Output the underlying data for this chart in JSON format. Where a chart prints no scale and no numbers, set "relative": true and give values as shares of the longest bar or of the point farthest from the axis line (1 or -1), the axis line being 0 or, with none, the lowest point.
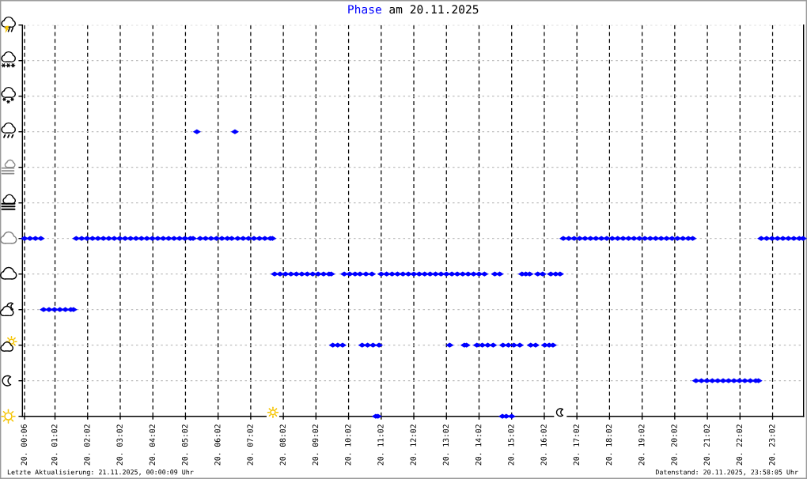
{
  "chart_data": {
    "type": "scatter",
    "title": "am 20.11.2025",
    "marker": "diamond",
    "grid": true,
    "tick_labels": "x",
    "relative": true,
    "xlim": [
      "2025-11-20T00:02",
      "2025-11-20T23:59"
    ],
    "xticks": [
      {
        "value": "2025-11-20T00:06",
        "label": "20. 00:06"
      },
      {
        "value": "2025-11-20T01:02",
        "label": "20. 01:02"
      },
      {
        "value": "2025-11-20T02:02",
        "label": "20. 02:02"
      },
      {
        "value": "2025-11-20T03:02",
        "label": "20. 03:02"
      },
      {
        "value": "2025-11-20T04:02",
        "label": "20. 04:02"
      },
      {
        "value": "2025-11-20T05:02",
        "label": "20. 05:02"
      },
      {
        "value": "2025-11-20T06:02",
        "label": "20. 06:02"
      },
      {
        "value": "2025-11-20T07:02",
        "label": "20. 07:02"
      },
      {
        "value": "2025-11-20T08:02",
        "label": "20. 08:02"
      },
      {
        "value": "2025-11-20T09:02",
        "label": "20. 09:02"
      },
      {
        "value": "2025-11-20T10:02",
        "label": "20. 10:02"
      },
      {
        "value": "2025-11-20T11:02",
        "label": "20. 11:02"
      },
      {
        "value": "2025-11-20T12:02",
        "label": "20. 12:02"
      },
      {
        "value": "2025-11-20T13:02",
        "label": "20. 13:02"
      },
      {
        "value": "2025-11-20T14:02",
        "label": "20. 14:02"
      },
      {
        "value": "2025-11-20T15:02",
        "label": "20. 15:02"
      },
      {
        "value": "2025-11-20T16:02",
        "label": "20. 16:02"
      },
      {
        "value": "2025-11-20T17:02",
        "label": "20. 17:02"
      },
      {
        "value": "2025-11-20T18:02",
        "label": "20. 18:02"
      },
      {
        "value": "2025-11-20T19:02",
        "label": "20. 19:02"
      },
      {
        "value": "2025-11-20T20:02",
        "label": "20. 20:02"
      },
      {
        "value": "2025-11-20T21:02",
        "label": "20. 21:02"
      },
      {
        "value": "2025-11-20T22:02",
        "label": "20. 22:02"
      },
      {
        "value": "2025-11-20T23:02",
        "label": "20. 23:02"
      }
    ],
    "annotations": [
      "Letzte Aktualisierung: 21.11.2025, 00:00:09 Uhr",
      "Datenstand: 20.11.2025, 23:58:05 Uhr"
    ],
    "series": [
      {
        "name": "Phase",
        "color": "#0000ff",
        "x": [
          "2025-11-20T00:06",
          "2025-11-20T00:16",
          "2025-11-20T00:26",
          "2025-11-20T00:36",
          "2025-11-20T00:41",
          "2025-11-20T00:51",
          "2025-11-20T01:01",
          "2025-11-20T01:11",
          "2025-11-20T01:21",
          "2025-11-20T01:31",
          "2025-11-20T01:36",
          "2025-11-20T01:41",
          "2025-11-20T01:51",
          "2025-11-20T02:01",
          "2025-11-20T02:11",
          "2025-11-20T02:21",
          "2025-11-20T02:31",
          "2025-11-20T02:41",
          "2025-11-20T02:51",
          "2025-11-20T03:01",
          "2025-11-20T03:11",
          "2025-11-20T03:21",
          "2025-11-20T03:31",
          "2025-11-20T03:41",
          "2025-11-20T03:51",
          "2025-11-20T04:01",
          "2025-11-20T04:11",
          "2025-11-20T04:21",
          "2025-11-20T04:31",
          "2025-11-20T04:41",
          "2025-11-20T04:51",
          "2025-11-20T05:01",
          "2025-11-20T05:11",
          "2025-11-20T05:16",
          "2025-11-20T05:23",
          "2025-11-20T05:29",
          "2025-11-20T05:39",
          "2025-11-20T05:49",
          "2025-11-20T05:59",
          "2025-11-20T06:09",
          "2025-11-20T06:19",
          "2025-11-20T06:27",
          "2025-11-20T06:33",
          "2025-11-20T06:38",
          "2025-11-20T06:48",
          "2025-11-20T06:58",
          "2025-11-20T07:08",
          "2025-11-20T07:18",
          "2025-11-20T07:28",
          "2025-11-20T07:38",
          "2025-11-20T07:42",
          "2025-11-20T07:46",
          "2025-11-20T07:56",
          "2025-11-20T08:06",
          "2025-11-20T08:16",
          "2025-11-20T08:26",
          "2025-11-20T08:36",
          "2025-11-20T08:46",
          "2025-11-20T08:56",
          "2025-11-20T09:06",
          "2025-11-20T09:16",
          "2025-11-20T09:26",
          "2025-11-20T09:30",
          "2025-11-20T09:33",
          "2025-11-20T09:42",
          "2025-11-20T09:51",
          "2025-11-20T09:54",
          "2025-11-20T10:04",
          "2025-11-20T10:14",
          "2025-11-20T10:23",
          "2025-11-20T10:27",
          "2025-11-20T10:34",
          "2025-11-20T10:37",
          "2025-11-20T10:45",
          "2025-11-20T10:47",
          "2025-11-20T10:52",
          "2025-11-20T10:56",
          "2025-11-20T10:58",
          "2025-11-20T11:02",
          "2025-11-20T11:12",
          "2025-11-20T11:22",
          "2025-11-20T11:32",
          "2025-11-20T11:42",
          "2025-11-20T11:52",
          "2025-11-20T12:02",
          "2025-11-20T12:12",
          "2025-11-20T12:22",
          "2025-11-20T12:32",
          "2025-11-20T12:42",
          "2025-11-20T12:52",
          "2025-11-20T13:02",
          "2025-11-20T13:08",
          "2025-11-20T13:12",
          "2025-11-20T13:22",
          "2025-11-20T13:32",
          "2025-11-20T13:35",
          "2025-11-20T13:39",
          "2025-11-20T13:42",
          "2025-11-20T13:52",
          "2025-11-20T13:58",
          "2025-11-20T14:02",
          "2025-11-20T14:08",
          "2025-11-20T14:12",
          "2025-11-20T14:18",
          "2025-11-20T14:28",
          "2025-11-20T14:31",
          "2025-11-20T14:40",
          "2025-11-20T14:45",
          "2025-11-20T14:46",
          "2025-11-20T14:52",
          "2025-11-20T14:56",
          "2025-11-20T15:02",
          "2025-11-20T15:06",
          "2025-11-20T15:17",
          "2025-11-20T15:21",
          "2025-11-20T15:28",
          "2025-11-20T15:35",
          "2025-11-20T15:37",
          "2025-11-20T15:46",
          "2025-11-20T15:50",
          "2025-11-20T15:59",
          "2025-11-20T16:03",
          "2025-11-20T16:11",
          "2025-11-20T16:14",
          "2025-11-20T16:18",
          "2025-11-20T16:23",
          "2025-11-20T16:31",
          "2025-11-20T16:37",
          "2025-11-20T16:47",
          "2025-11-20T16:57",
          "2025-11-20T17:07",
          "2025-11-20T17:17",
          "2025-11-20T17:27",
          "2025-11-20T17:37",
          "2025-11-20T17:47",
          "2025-11-20T17:57",
          "2025-11-20T18:07",
          "2025-11-20T18:17",
          "2025-11-20T18:27",
          "2025-11-20T18:37",
          "2025-11-20T18:47",
          "2025-11-20T18:57",
          "2025-11-20T19:07",
          "2025-11-20T19:17",
          "2025-11-20T19:27",
          "2025-11-20T19:37",
          "2025-11-20T19:47",
          "2025-11-20T19:57",
          "2025-11-20T20:07",
          "2025-11-20T20:17",
          "2025-11-20T20:27",
          "2025-11-20T20:35",
          "2025-11-20T20:41",
          "2025-11-20T20:51",
          "2025-11-20T21:01",
          "2025-11-20T21:11",
          "2025-11-20T21:21",
          "2025-11-20T21:31",
          "2025-11-20T21:41",
          "2025-11-20T21:51",
          "2025-11-20T22:01",
          "2025-11-20T22:11",
          "2025-11-20T22:21",
          "2025-11-20T22:31",
          "2025-11-20T22:36",
          "2025-11-20T22:41",
          "2025-11-20T22:51",
          "2025-11-20T23:01",
          "2025-11-20T23:11",
          "2025-11-20T23:21",
          "2025-11-20T23:31",
          "2025-11-20T23:41",
          "2025-11-20T23:51",
          "2025-11-20T23:58"
        ],
        "values": [
          0.625,
          0.625,
          0.625,
          0.625,
          0.375,
          0.375,
          0.375,
          0.375,
          0.375,
          0.375,
          0.375,
          0.625,
          0.625,
          0.625,
          0.625,
          0.625,
          0.625,
          0.625,
          0.625,
          0.625,
          0.625,
          0.625,
          0.625,
          0.625,
          0.625,
          0.625,
          0.625,
          0.625,
          0.625,
          0.625,
          0.625,
          0.625,
          0.625,
          0.625,
          1,
          0.625,
          0.625,
          0.625,
          0.625,
          0.625,
          0.625,
          0.625,
          1,
          0.625,
          0.625,
          0.625,
          0.625,
          0.625,
          0.625,
          0.625,
          0.625,
          0.5,
          0.5,
          0.5,
          0.5,
          0.5,
          0.5,
          0.5,
          0.5,
          0.5,
          0.5,
          0.5,
          0.5,
          0.25,
          0.25,
          0.25,
          0.5,
          0.5,
          0.5,
          0.5,
          0.25,
          0.5,
          0.25,
          0.5,
          0.25,
          0,
          0,
          0.25,
          0.5,
          0.5,
          0.5,
          0.5,
          0.5,
          0.5,
          0.5,
          0.5,
          0.5,
          0.5,
          0.5,
          0.5,
          0.5,
          0.25,
          0.5,
          0.5,
          0.5,
          0.25,
          0.25,
          0.5,
          0.5,
          0.25,
          0.5,
          0.25,
          0.5,
          0.25,
          0.25,
          0.5,
          0.5,
          0,
          0.25,
          0,
          0.25,
          0,
          0.25,
          0.25,
          0.5,
          0.5,
          0.5,
          0.25,
          0.25,
          0.5,
          0.5,
          0.25,
          0.25,
          0.5,
          0.25,
          0.5,
          0.5,
          0.625,
          0.625,
          0.625,
          0.625,
          0.625,
          0.625,
          0.625,
          0.625,
          0.625,
          0.625,
          0.625,
          0.625,
          0.625,
          0.625,
          0.625,
          0.625,
          0.625,
          0.625,
          0.625,
          0.625,
          0.625,
          0.625,
          0.625,
          0.625,
          0.625,
          0.125,
          0.125,
          0.125,
          0.125,
          0.125,
          0.125,
          0.125,
          0.125,
          0.125,
          0.125,
          0.125,
          0.125,
          0.125,
          0.625,
          0.625,
          0.625,
          0.625,
          0.625,
          0.625,
          0.625,
          0.625,
          0.625
        ]
      }
    ]
  }
}
